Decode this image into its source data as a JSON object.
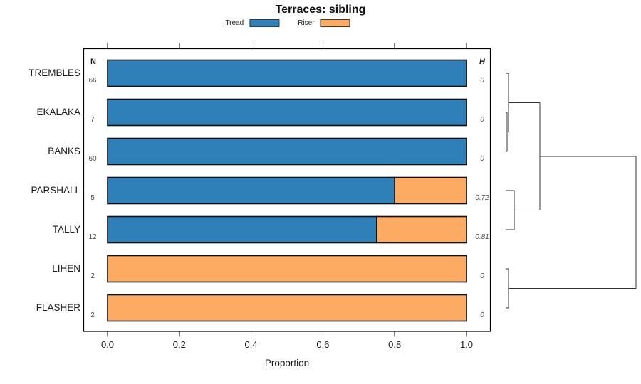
{
  "chart_data": {
    "type": "bar",
    "orientation": "horizontal-stacked",
    "title": "Terraces: sibling",
    "xlabel": "Proportion",
    "xlim": [
      0,
      1
    ],
    "x_ticks": [
      "0.0",
      "0.2",
      "0.4",
      "0.6",
      "0.8",
      "1.0"
    ],
    "grid": "off",
    "legend": {
      "position": "top-center",
      "items": [
        {
          "label": "Tread",
          "color": "#2f80b9"
        },
        {
          "label": "Riser",
          "color": "#fdab63"
        }
      ]
    },
    "n_column_header": "N",
    "h_column_header": "H",
    "rows": [
      {
        "label": "TREMBLES",
        "n": "66",
        "tread": 1.0,
        "riser": 0.0,
        "h": "0"
      },
      {
        "label": "EKALAKA",
        "n": "7",
        "tread": 1.0,
        "riser": 0.0,
        "h": "0"
      },
      {
        "label": "BANKS",
        "n": "60",
        "tread": 1.0,
        "riser": 0.0,
        "h": "0"
      },
      {
        "label": "PARSHALL",
        "n": "5",
        "tread": 0.8,
        "riser": 0.2,
        "h": "0.72"
      },
      {
        "label": "TALLY",
        "n": "12",
        "tread": 0.75,
        "riser": 0.25,
        "h": "0.81"
      },
      {
        "label": "LIHEN",
        "n": "2",
        "tread": 0.0,
        "riser": 1.0,
        "h": "0"
      },
      {
        "label": "FLASHER",
        "n": "2",
        "tread": 0.0,
        "riser": 1.0,
        "h": "0"
      }
    ],
    "dendrogram": {
      "description": "hierarchical clustering of rows, leaves at left, root at right",
      "merges": [
        {
          "id": "m1",
          "children": [
            "EKALAKA",
            "BANKS"
          ],
          "height": 0.011
        },
        {
          "id": "m2",
          "children": [
            "TREMBLES",
            "m1"
          ],
          "height": 0.022
        },
        {
          "id": "m3",
          "children": [
            "PARSHALL",
            "TALLY"
          ],
          "height": 0.066
        },
        {
          "id": "m4",
          "children": [
            "m2",
            "m3"
          ],
          "height": 0.262
        },
        {
          "id": "m5",
          "children": [
            "LIHEN",
            "FLASHER"
          ],
          "height": 0.022
        },
        {
          "id": "m6",
          "children": [
            "m4",
            "m5"
          ],
          "height": 1.0
        }
      ]
    },
    "colors": {
      "tread": "#2f80b9",
      "riser": "#fdab63",
      "bar_border": "#0d0d0d",
      "axis": "#000000",
      "dendrogram_line": "#333333",
      "value_text": "#4a4a4a"
    }
  }
}
